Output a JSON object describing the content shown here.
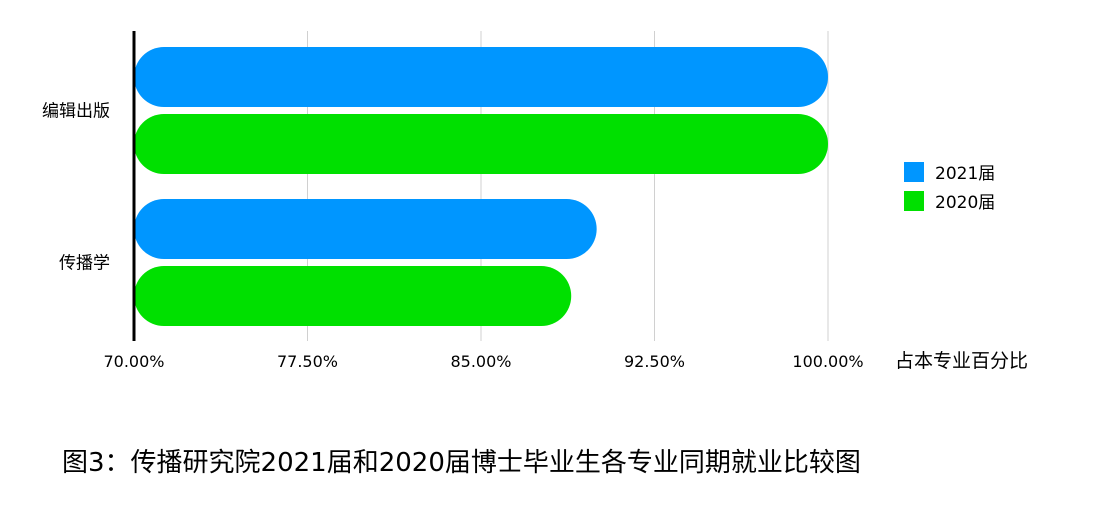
{
  "chart_data": {
    "type": "bar",
    "orientation": "horizontal",
    "categories": [
      "编辑出版",
      "传播学"
    ],
    "series": [
      {
        "name": "2021届",
        "color": "#0096FF",
        "values": [
          100.0,
          90.0
        ]
      },
      {
        "name": "2020届",
        "color": "#00E000",
        "values": [
          100.0,
          88.9
        ]
      }
    ],
    "x_ticks": [
      "70.00%",
      "77.50%",
      "85.00%",
      "92.50%",
      "100.00%"
    ],
    "xlim": [
      70,
      100
    ],
    "xlabel": "占本专业百分比",
    "grid": true,
    "legend_position": "right"
  },
  "caption": "图3：传播研究院2021届和2020届博士毕业生各专业同期就业比较图"
}
